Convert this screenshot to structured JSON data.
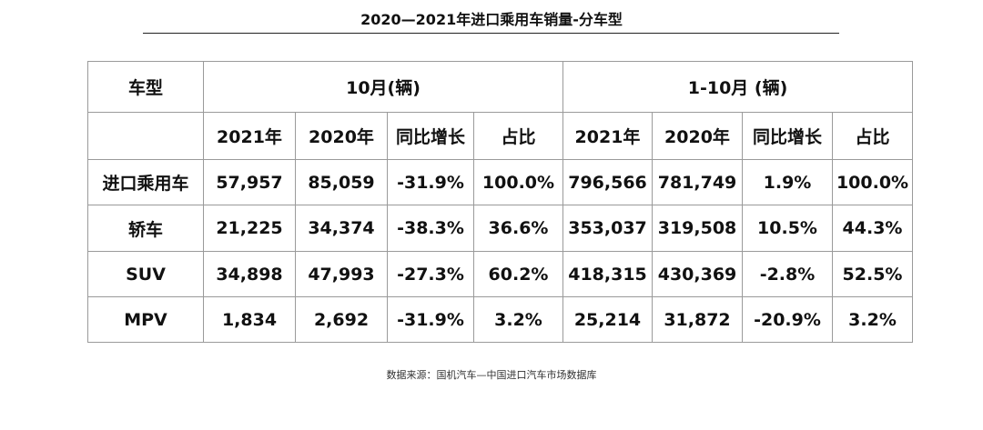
{
  "title": "2020—2021年进口乘用车销量-分车型",
  "source": "数据来源：国机汽车—中国进口汽车市场数据库",
  "chart_data": {
    "type": "table",
    "title": "2020—2021年进口乘用车销量-分车型",
    "row_header": "车型",
    "groups": [
      "10月(辆)",
      "1-10月 (辆)"
    ],
    "columns": [
      "2021年",
      "2020年",
      "同比增长",
      "占比",
      "2021年",
      "2020年",
      "同比增长",
      "占比"
    ],
    "rows": [
      {
        "label": "进口乘用车",
        "values": [
          "57,957",
          "85,059",
          "-31.9%",
          "100.0%",
          "796,566",
          "781,749",
          "1.9%",
          "100.0%"
        ]
      },
      {
        "label": "轿车",
        "values": [
          "21,225",
          "34,374",
          "-38.3%",
          "36.6%",
          "353,037",
          "319,508",
          "10.5%",
          "44.3%"
        ]
      },
      {
        "label": "SUV",
        "values": [
          "34,898",
          "47,993",
          "-27.3%",
          "60.2%",
          "418,315",
          "430,369",
          "-2.8%",
          "52.5%"
        ]
      },
      {
        "label": "MPV",
        "values": [
          "1,834",
          "2,692",
          "-31.9%",
          "3.2%",
          "25,214",
          "31,872",
          "-20.9%",
          "3.2%"
        ]
      }
    ]
  }
}
